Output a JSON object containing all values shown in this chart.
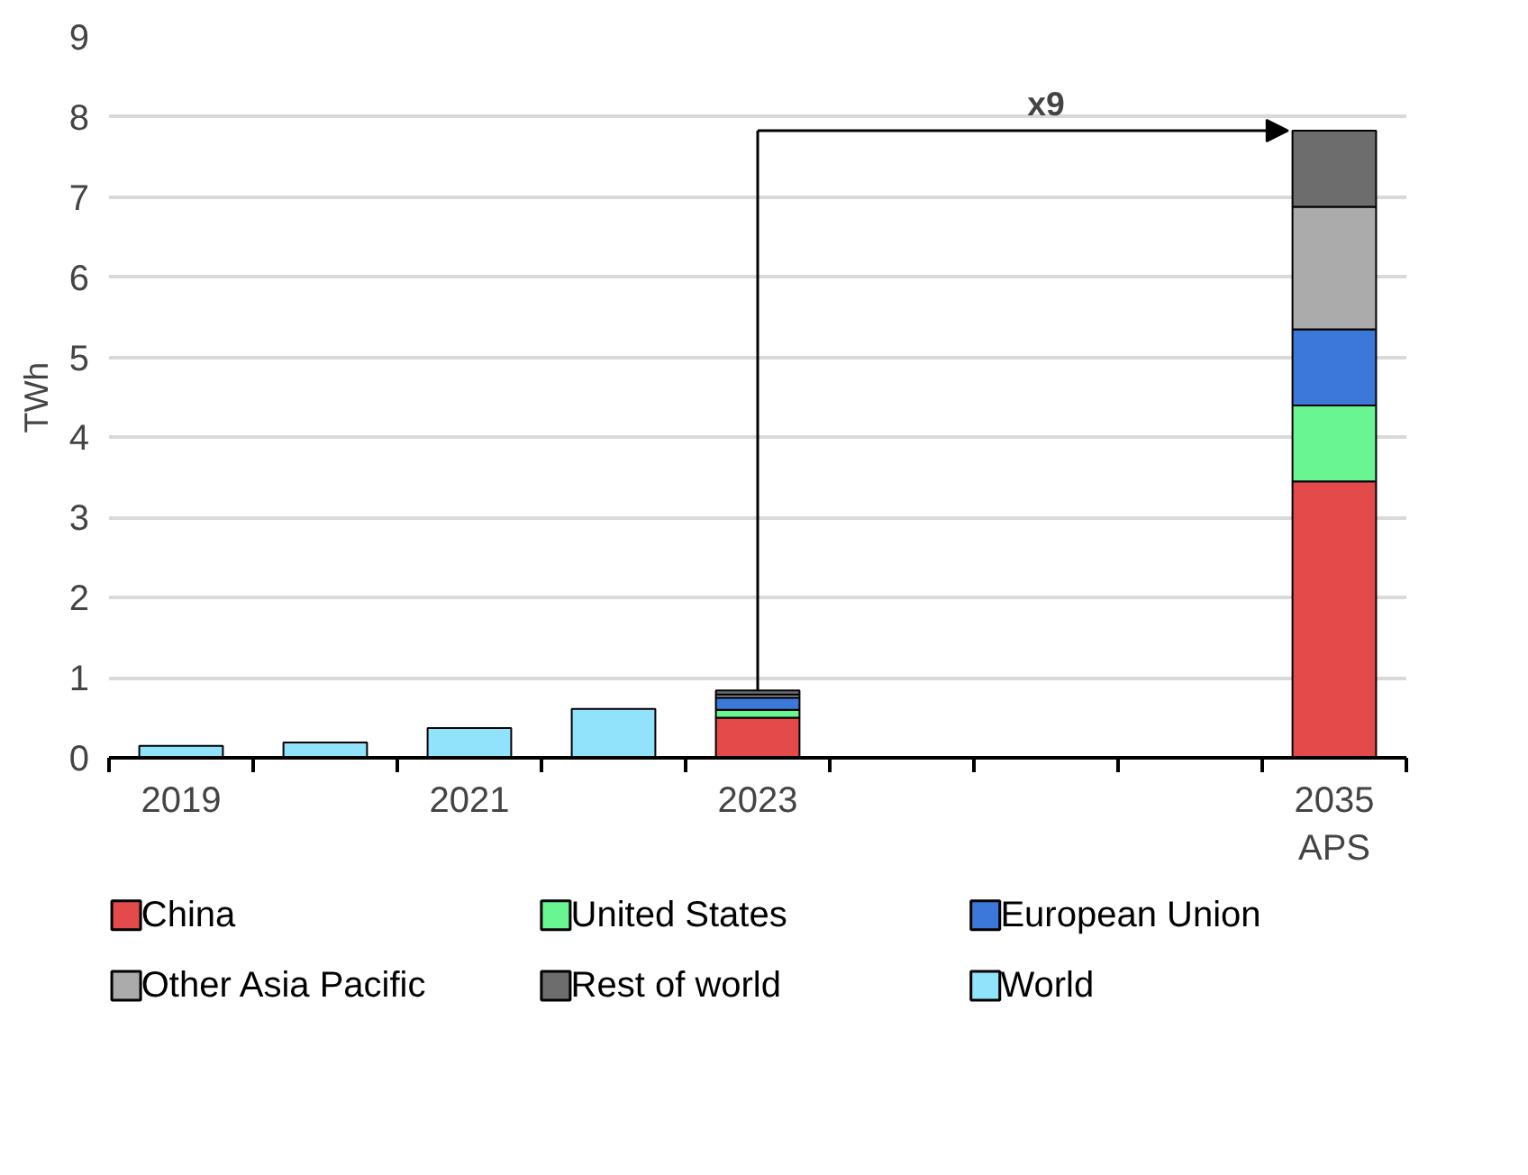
{
  "chart_data": {
    "type": "bar",
    "stacked": true,
    "categories": [
      "2019",
      null,
      "2021",
      null,
      "2023",
      null,
      null,
      null,
      "2035\nAPS"
    ],
    "ylabel": "TWh",
    "ylim": [
      0,
      9
    ],
    "yticks": [
      0,
      1,
      2,
      3,
      4,
      5,
      6,
      7,
      8,
      9
    ],
    "grid": "y",
    "legend": "bottom",
    "annotations": [
      "x9"
    ],
    "series": [
      {
        "name": "China",
        "color": "#e34a4a",
        "values": [
          null,
          null,
          null,
          null,
          0.5,
          null,
          null,
          null,
          3.45
        ]
      },
      {
        "name": "United States",
        "color": "#69f592",
        "values": [
          null,
          null,
          null,
          null,
          0.1,
          null,
          null,
          null,
          0.95
        ]
      },
      {
        "name": "European Union",
        "color": "#3c78d8",
        "values": [
          null,
          null,
          null,
          null,
          0.15,
          null,
          null,
          null,
          0.95
        ]
      },
      {
        "name": "Other Asia Pacific",
        "color": "#ababab",
        "values": [
          null,
          null,
          null,
          null,
          0.04,
          null,
          null,
          null,
          1.53
        ]
      },
      {
        "name": "Rest of world",
        "color": "#6d6d6d",
        "values": [
          null,
          null,
          null,
          null,
          0.05,
          null,
          null,
          null,
          0.95
        ]
      },
      {
        "name": "World",
        "color": "#91e3fb",
        "values": [
          0.15,
          0.19,
          0.37,
          0.61,
          null,
          null,
          null,
          null,
          null
        ]
      }
    ]
  }
}
